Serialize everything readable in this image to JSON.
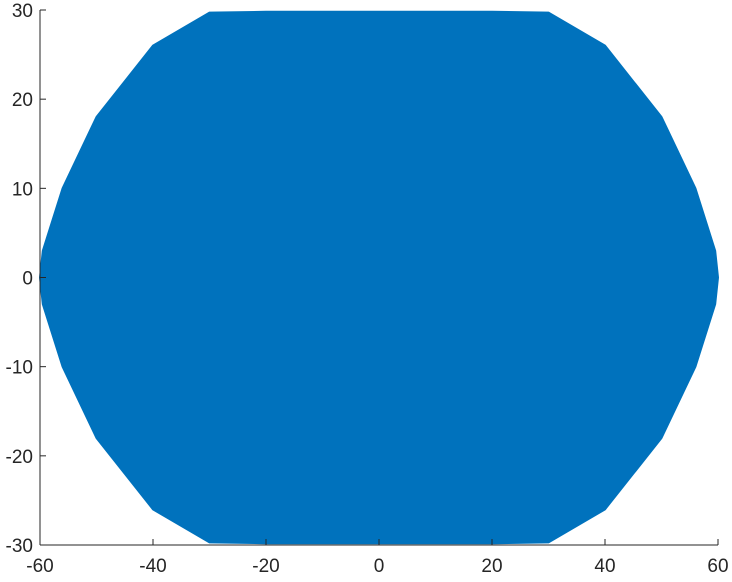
{
  "colors": {
    "series": "#0072BD",
    "axis": "#262626",
    "background": "#ffffff"
  },
  "chart_data": {
    "type": "line",
    "title": "",
    "xlabel": "",
    "ylabel": "",
    "xlim": [
      -60,
      60
    ],
    "ylim": [
      -30,
      30
    ],
    "grid": false,
    "legend": "none",
    "x_ticks": [
      -60,
      -40,
      -20,
      0,
      20,
      40,
      60
    ],
    "x_tick_labels": [
      "-60",
      "-40",
      "-20",
      "0",
      "20",
      "40",
      "60"
    ],
    "y_ticks": [
      -30,
      -20,
      -10,
      0,
      10,
      20,
      30
    ],
    "y_tick_labels": [
      "-30",
      "-20",
      "-10",
      "0",
      "10",
      "20",
      "30"
    ],
    "series": [
      {
        "description_points": "dense oscillating trajectory filling a rounded region",
        "boundary": {
          "x": [
            -30,
            -20,
            -10,
            0,
            10,
            20,
            30,
            40,
            50,
            56,
            59.5,
            60,
            59.5,
            56,
            50,
            40,
            30,
            20,
            10,
            0,
            -10,
            -20,
            -30,
            -40,
            -50,
            -56,
            -59.5,
            -60,
            -59.5,
            -56,
            -50,
            -40,
            -30
          ],
          "y": [
            29.7,
            29.8,
            29.8,
            29.8,
            29.8,
            29.8,
            29.7,
            26,
            18,
            10,
            3,
            0,
            -3,
            -10,
            -18,
            -26,
            -29.7,
            -29.8,
            -29.8,
            -29.8,
            -29.8,
            -29.8,
            -29.7,
            -26,
            -18,
            -10,
            -3,
            0,
            3,
            10,
            18,
            26,
            29.7
          ]
        }
      }
    ]
  }
}
